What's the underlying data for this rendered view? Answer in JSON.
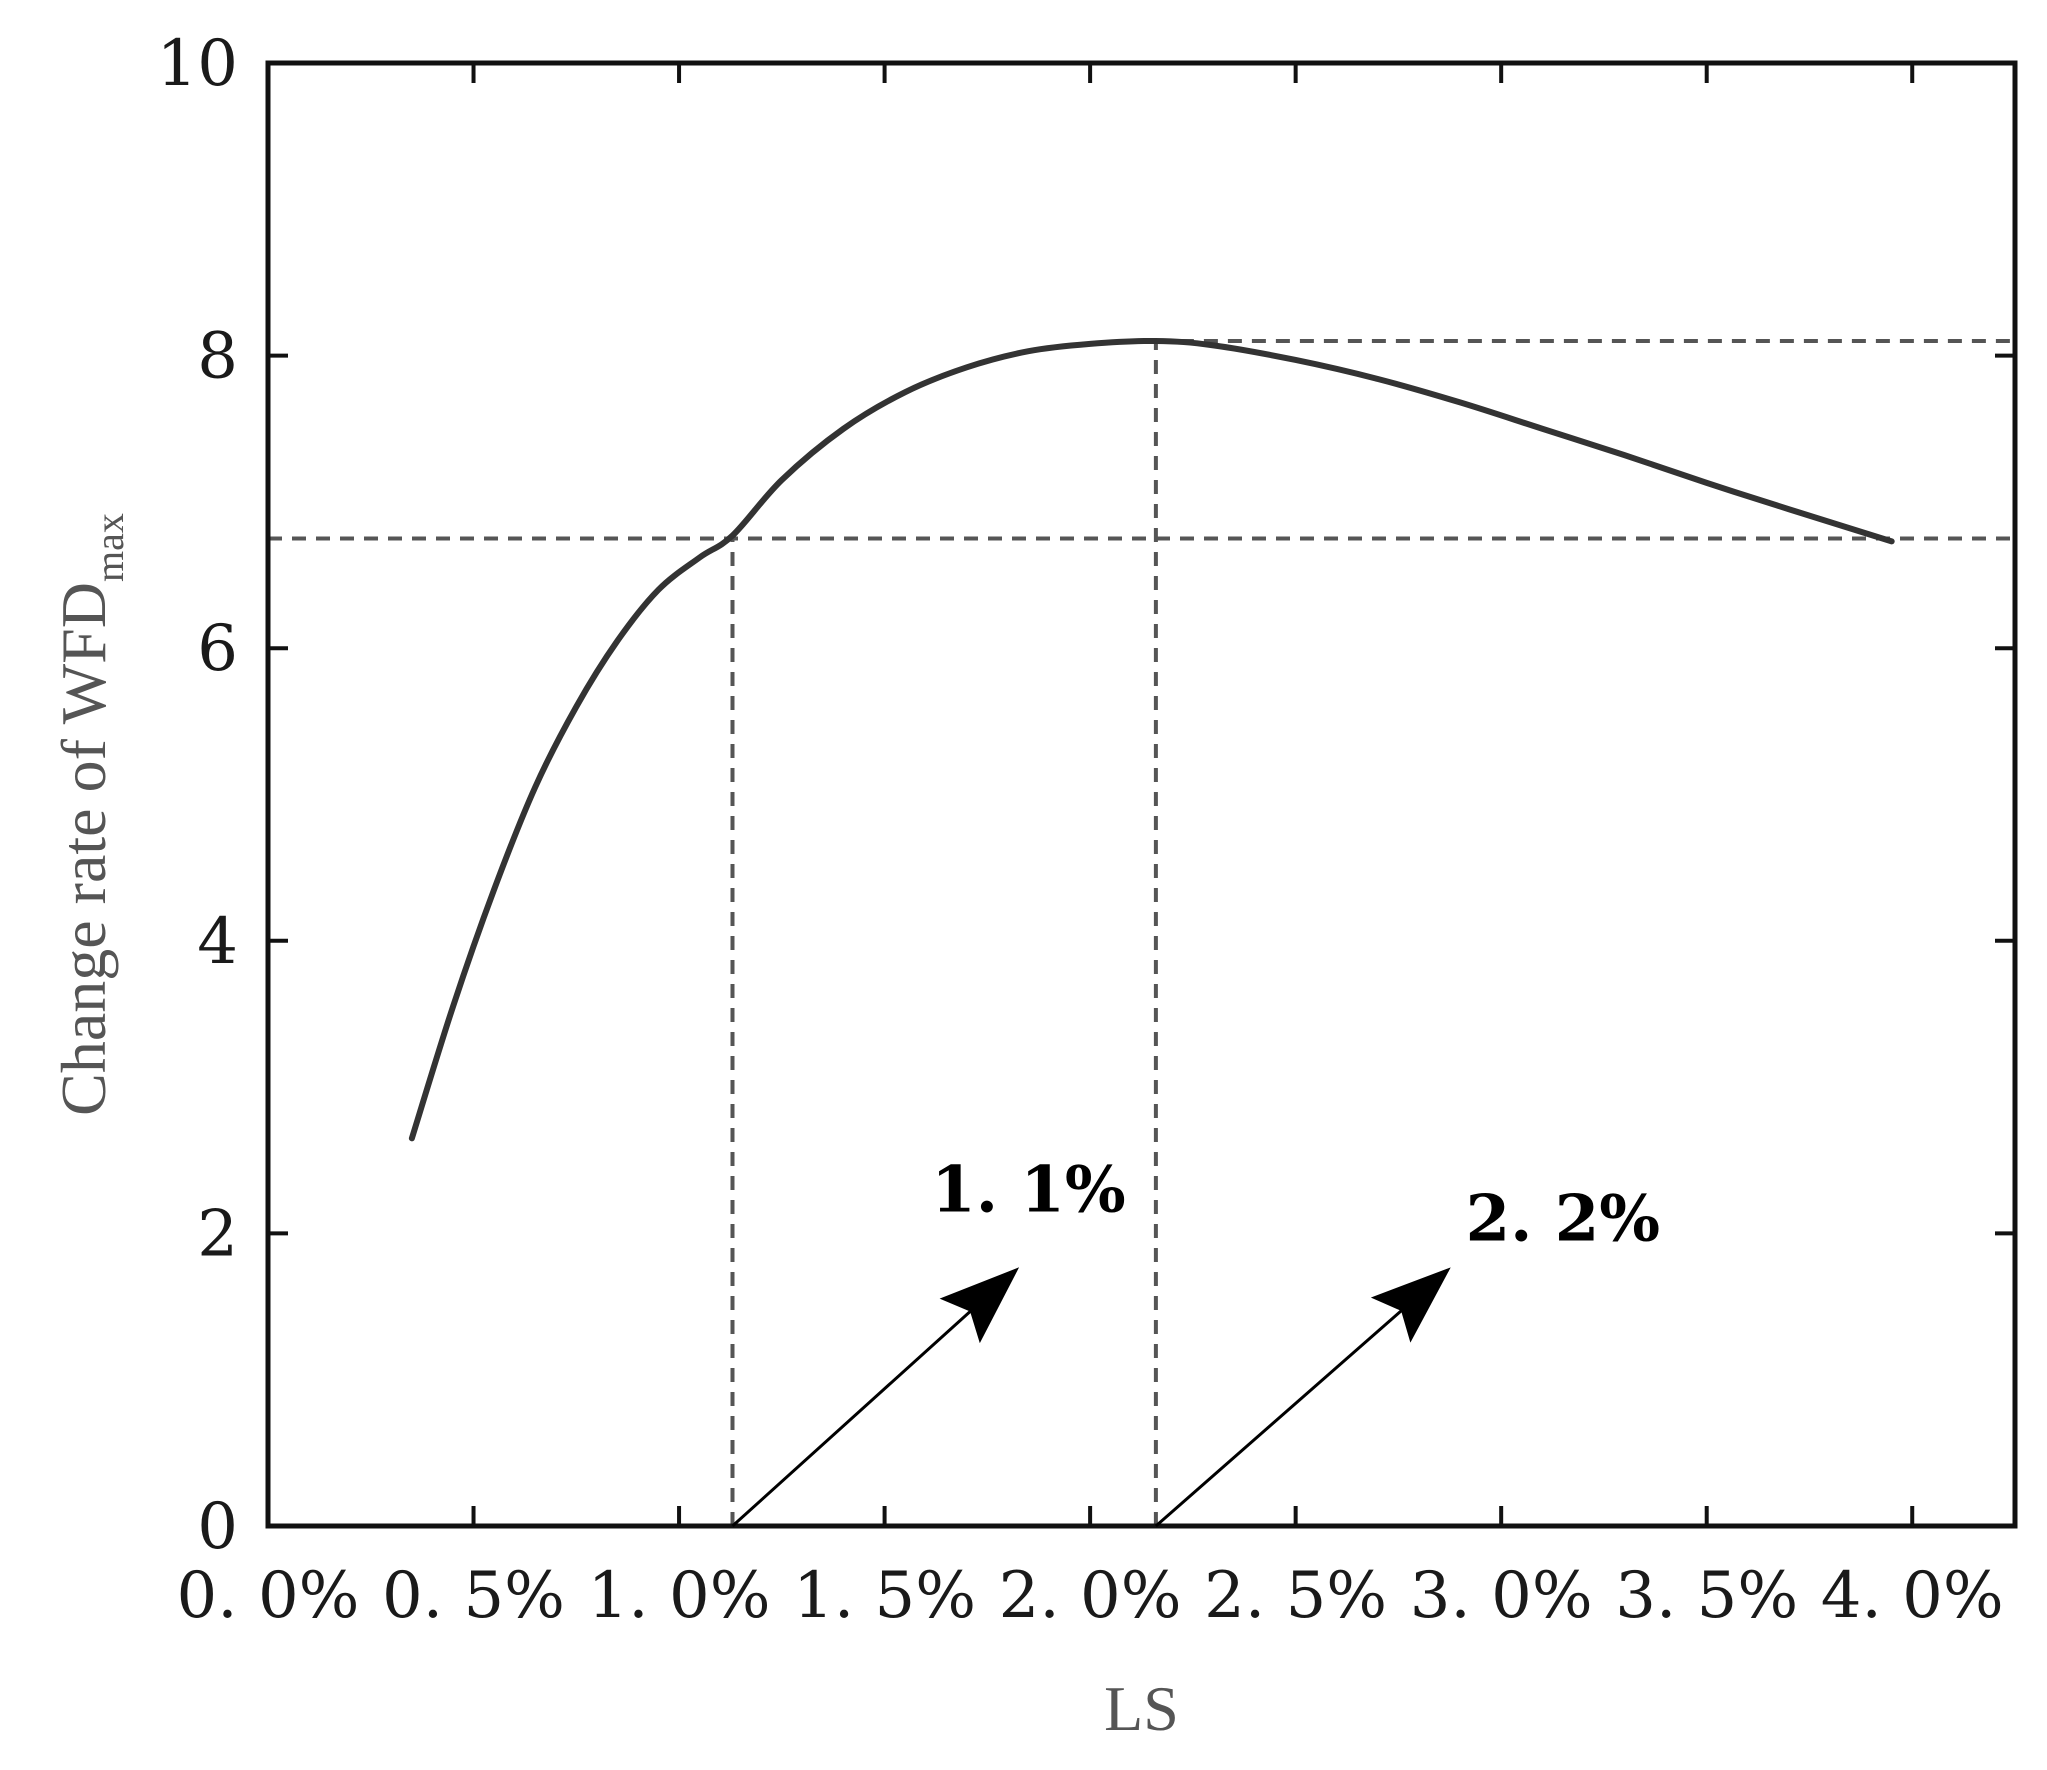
{
  "chart_data": {
    "type": "line",
    "xlabel": "LS",
    "ylabel_main": "Change rate of WFD",
    "ylabel_sub": "max",
    "xlim": [
      0.0,
      4.25
    ],
    "ylim": [
      0,
      10
    ],
    "x_ticks": [
      0.0,
      0.5,
      1.0,
      1.5,
      2.0,
      2.5,
      3.0,
      3.5,
      4.0
    ],
    "x_tick_labels": [
      "0. 0%",
      "0. 5%",
      "1. 0%",
      "1. 5%",
      "2. 0%",
      "2. 5%",
      "3. 0%",
      "3. 5%",
      "4. 0%"
    ],
    "y_ticks": [
      0,
      2,
      4,
      6,
      8,
      10
    ],
    "y_tick_labels": [
      "0",
      "2",
      "4",
      "6",
      "8",
      "10"
    ],
    "series": [
      {
        "x": [
          0.35,
          0.45,
          0.55,
          0.65,
          0.75,
          0.85,
          0.95,
          1.05,
          1.13,
          1.25,
          1.4,
          1.55,
          1.7,
          1.85,
          2.0,
          2.16,
          2.3,
          2.5,
          2.7,
          2.9,
          3.1,
          3.3,
          3.5,
          3.7,
          3.95
        ],
        "y": [
          2.65,
          3.55,
          4.35,
          5.05,
          5.6,
          6.05,
          6.4,
          6.62,
          6.77,
          7.15,
          7.5,
          7.75,
          7.92,
          8.03,
          8.08,
          8.1,
          8.07,
          7.97,
          7.84,
          7.68,
          7.5,
          7.32,
          7.13,
          6.95,
          6.73
        ]
      }
    ],
    "reference_lines": {
      "horizontal": [
        8.1,
        6.75
      ],
      "vertical": [
        1.13,
        2.16
      ]
    },
    "annotations": [
      {
        "text": "1. 1%",
        "x": 1.85,
        "y": 2.15,
        "arrow_from": [
          1.13,
          0
        ],
        "arrow_to": [
          1.82,
          1.75
        ]
      },
      {
        "text": "2. 2%",
        "x": 3.15,
        "y": 1.95,
        "arrow_from": [
          2.16,
          0
        ],
        "arrow_to": [
          2.87,
          1.75
        ]
      }
    ],
    "colors": {
      "curve": "#333333",
      "axis": "#111111",
      "reference": "#555555",
      "arrow": "#000000"
    }
  }
}
